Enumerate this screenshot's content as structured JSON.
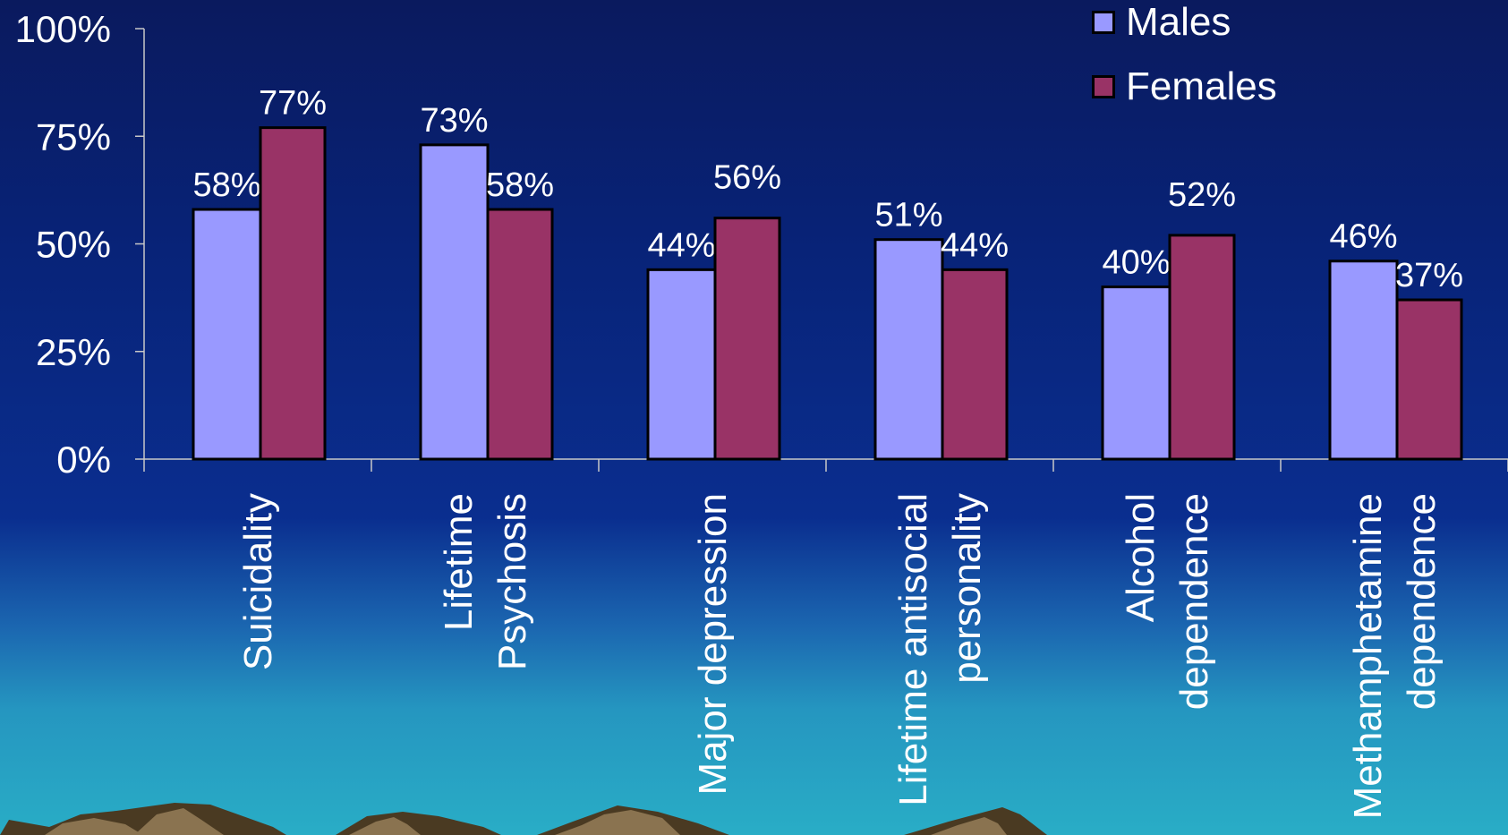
{
  "chart_data": {
    "type": "bar",
    "categories": [
      [
        "Suicidality"
      ],
      [
        "Lifetime",
        "Psychosis"
      ],
      [
        "Major depression"
      ],
      [
        "Lifetime antisocial",
        "personality"
      ],
      [
        "Alcohol",
        "dependence"
      ],
      [
        "Methamphetamine",
        "dependence"
      ]
    ],
    "series": [
      {
        "name": "Males",
        "color": "#9999ff",
        "values": [
          58,
          73,
          44,
          51,
          40,
          46
        ],
        "labels": [
          "58%",
          "73%",
          "44%",
          "51%",
          "40%",
          "46%"
        ]
      },
      {
        "name": "Females",
        "color": "#993366",
        "values": [
          77,
          58,
          56,
          44,
          52,
          37
        ],
        "labels": [
          "77%",
          "58%",
          "56%",
          "44%",
          "52%",
          "37%"
        ]
      }
    ],
    "y_ticks": [
      0,
      25,
      50,
      75,
      100
    ],
    "y_tick_labels": [
      "0%",
      "25%",
      "50%",
      "75%",
      "100%"
    ],
    "ylim": [
      0,
      100
    ],
    "legend_position": "top-right",
    "grid": false
  }
}
